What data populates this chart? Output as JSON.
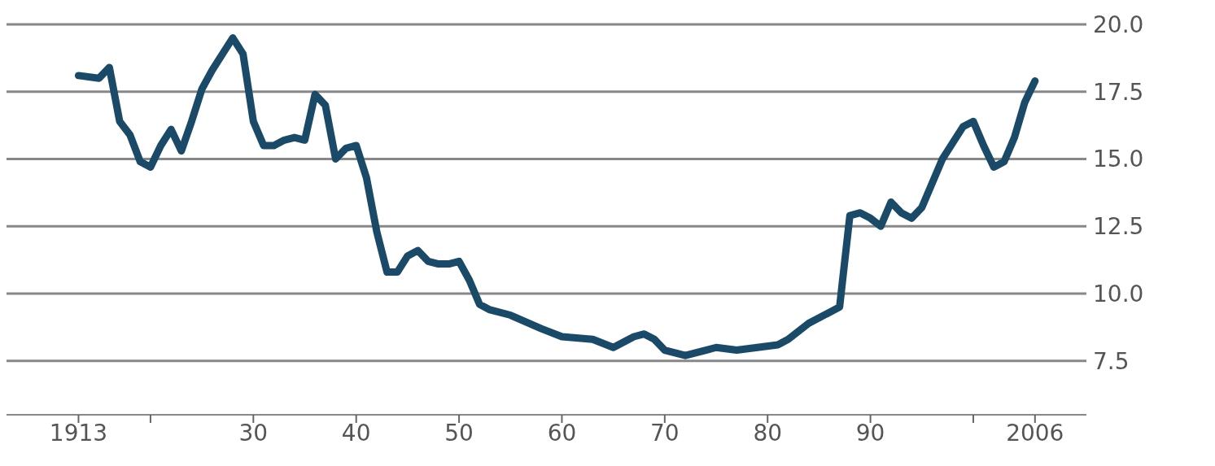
{
  "chart_data": {
    "type": "line",
    "x": [
      1913,
      1915,
      1916,
      1917,
      1918,
      1919,
      1920,
      1921,
      1922,
      1923,
      1924,
      1925,
      1926,
      1927,
      1928,
      1929,
      1930,
      1931,
      1932,
      1933,
      1934,
      1935,
      1936,
      1937,
      1938,
      1939,
      1940,
      1941,
      1942,
      1943,
      1944,
      1945,
      1946,
      1947,
      1948,
      1949,
      1950,
      1951,
      1952,
      1953,
      1955,
      1958,
      1960,
      1963,
      1965,
      1967,
      1968,
      1969,
      1970,
      1972,
      1974,
      1975,
      1977,
      1979,
      1981,
      1982,
      1984,
      1986,
      1987,
      1988,
      1989,
      1990,
      1991,
      1992,
      1993,
      1994,
      1995,
      1996,
      1997,
      1998,
      1999,
      2000,
      2001,
      2002,
      2003,
      2004,
      2005,
      2006
    ],
    "series": [
      {
        "color": "#1b4a68",
        "values": [
          18.1,
          18.0,
          18.4,
          16.4,
          15.9,
          14.9,
          14.7,
          15.5,
          16.1,
          15.3,
          16.4,
          17.6,
          18.3,
          18.9,
          19.5,
          18.9,
          16.4,
          15.5,
          15.5,
          15.7,
          15.8,
          15.7,
          17.4,
          17.0,
          15.0,
          15.4,
          15.5,
          14.3,
          12.3,
          10.8,
          10.8,
          11.4,
          11.6,
          11.2,
          11.1,
          11.1,
          11.2,
          10.5,
          9.6,
          9.4,
          9.2,
          8.7,
          8.4,
          8.3,
          8.0,
          8.4,
          8.5,
          8.3,
          7.9,
          7.7,
          7.9,
          8.0,
          7.9,
          8.0,
          8.1,
          8.3,
          8.9,
          9.3,
          9.5,
          12.9,
          13.0,
          12.8,
          12.5,
          13.4,
          13.0,
          12.8,
          13.2,
          14.1,
          15.0,
          15.6,
          16.2,
          16.4,
          15.5,
          14.7,
          14.9,
          15.8,
          17.1,
          17.9
        ]
      }
    ],
    "xlim": [
      1906,
      2011
    ],
    "xticks": [
      1913,
      {
        "value": 1920,
        "label": null
      },
      {
        "value": 1930,
        "label": "30"
      },
      {
        "value": 1940,
        "label": "40"
      },
      {
        "value": 1950,
        "label": "50"
      },
      {
        "value": 1960,
        "label": "60"
      },
      {
        "value": 1970,
        "label": "70"
      },
      {
        "value": 1980,
        "label": "80"
      },
      {
        "value": 1990,
        "label": "90"
      },
      {
        "value": 2000,
        "label": null
      },
      2006
    ],
    "ylim": [
      5.5,
      20
    ],
    "yticks": [
      {
        "value": 7.5,
        "label": "7.5"
      },
      {
        "value": 10,
        "label": "10.0"
      },
      {
        "value": 12.5,
        "label": "12.5"
      },
      {
        "value": 15,
        "label": "15.0"
      },
      {
        "value": 17.5,
        "label": "17.5"
      },
      {
        "value": 20,
        "label": "20.0"
      }
    ],
    "grid": "y",
    "marker": "none",
    "line_style": "solid",
    "legend": false
  }
}
